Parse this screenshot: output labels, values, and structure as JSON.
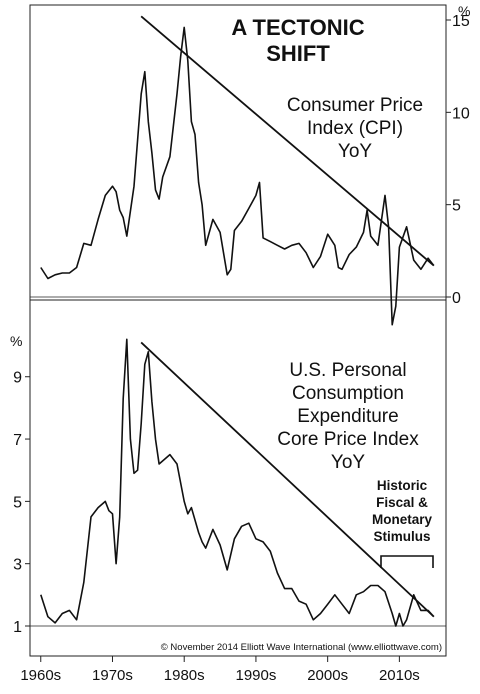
{
  "chart_data": [
    {
      "type": "line",
      "title": "A TECTONIC\nSHIFT",
      "series": [
        {
          "name": "Consumer Price\nIndex (CPI)\nYoY",
          "x": [
            1960.0,
            1961.0,
            1962.0,
            1963.0,
            1964.0,
            1965.0,
            1966.0,
            1967.0,
            1968.0,
            1969.0,
            1970.0,
            1970.5,
            1971.0,
            1971.5,
            1972.0,
            1973.0,
            1973.5,
            1974.0,
            1974.5,
            1975.0,
            1975.5,
            1976.0,
            1976.5,
            1977.0,
            1978.0,
            1979.0,
            1979.5,
            1980.0,
            1980.5,
            1981.0,
            1981.5,
            1982.0,
            1982.5,
            1983.0,
            1984.0,
            1985.0,
            1986.0,
            1986.5,
            1987.0,
            1988.0,
            1989.0,
            1990.0,
            1990.5,
            1991.0,
            1992.0,
            1993.0,
            1994.0,
            1995.0,
            1996.0,
            1997.0,
            1998.0,
            1999.0,
            2000.0,
            2001.0,
            2001.5,
            2002.0,
            2003.0,
            2004.0,
            2005.0,
            2005.5,
            2006.0,
            2007.0,
            2008.0,
            2008.5,
            2009.0,
            2009.5,
            2010.0,
            2011.0,
            2012.0,
            2013.0,
            2014.0,
            2014.8
          ],
          "values": [
            1.6,
            1.0,
            1.2,
            1.3,
            1.3,
            1.6,
            2.9,
            2.8,
            4.2,
            5.5,
            6.0,
            5.7,
            4.7,
            4.3,
            3.3,
            6.0,
            8.5,
            11.0,
            12.2,
            9.5,
            7.8,
            5.8,
            5.3,
            6.5,
            7.6,
            11.0,
            13.0,
            14.6,
            12.8,
            9.5,
            8.8,
            6.2,
            5.0,
            2.8,
            4.2,
            3.5,
            1.2,
            1.5,
            3.6,
            4.1,
            4.8,
            5.5,
            6.2,
            3.2,
            3.0,
            2.8,
            2.6,
            2.8,
            2.9,
            2.4,
            1.6,
            2.2,
            3.4,
            2.8,
            1.6,
            1.5,
            2.3,
            2.7,
            3.5,
            4.7,
            3.3,
            2.8,
            5.5,
            3.8,
            -1.5,
            -0.5,
            2.7,
            3.8,
            2.0,
            1.5,
            2.1,
            1.7
          ]
        }
      ],
      "ylim": [
        0,
        15
      ],
      "yticks": [
        0,
        5,
        10,
        15
      ],
      "ylabel": "%",
      "trendline": {
        "x": [
          1974.0,
          2014.8
        ],
        "y": [
          15.2,
          1.7
        ]
      },
      "grid": false
    },
    {
      "type": "line",
      "series": [
        {
          "name": "U.S. Personal\nConsumption\nExpenditure\nCore Price Index\nYoY",
          "x": [
            1960.0,
            1961.0,
            1962.0,
            1963.0,
            1964.0,
            1965.0,
            1966.0,
            1967.0,
            1968.0,
            1969.0,
            1969.5,
            1970.0,
            1970.5,
            1971.0,
            1971.5,
            1972.0,
            1972.5,
            1973.0,
            1973.5,
            1974.0,
            1974.5,
            1975.0,
            1975.5,
            1976.0,
            1976.5,
            1977.0,
            1978.0,
            1979.0,
            1980.0,
            1980.5,
            1981.0,
            1982.0,
            1982.5,
            1983.0,
            1984.0,
            1985.0,
            1986.0,
            1987.0,
            1988.0,
            1989.0,
            1990.0,
            1991.0,
            1992.0,
            1993.0,
            1994.0,
            1995.0,
            1996.0,
            1997.0,
            1998.0,
            1999.0,
            2000.0,
            2001.0,
            2002.0,
            2003.0,
            2004.0,
            2005.0,
            2006.0,
            2007.0,
            2008.0,
            2009.0,
            2009.5,
            2010.0,
            2010.5,
            2011.0,
            2012.0,
            2013.0,
            2014.0,
            2014.8
          ],
          "values": [
            2.0,
            1.3,
            1.1,
            1.4,
            1.5,
            1.2,
            2.4,
            4.5,
            4.8,
            5.0,
            4.7,
            4.6,
            3.0,
            4.5,
            8.3,
            10.2,
            7.0,
            5.9,
            6.0,
            7.5,
            9.4,
            9.8,
            8.2,
            7.0,
            6.2,
            6.3,
            6.5,
            6.2,
            5.0,
            4.6,
            4.8,
            4.0,
            3.7,
            3.5,
            4.1,
            3.6,
            2.8,
            3.8,
            4.2,
            4.3,
            3.8,
            3.7,
            3.4,
            2.7,
            2.2,
            2.2,
            1.8,
            1.7,
            1.2,
            1.4,
            1.7,
            2.0,
            1.7,
            1.4,
            2.0,
            2.1,
            2.3,
            2.3,
            2.1,
            1.4,
            1.0,
            1.4,
            1.0,
            1.2,
            2.0,
            1.5,
            1.5,
            1.3
          ]
        }
      ],
      "ylim": [
        1,
        10.5
      ],
      "yticks": [
        1,
        3,
        5,
        7,
        9
      ],
      "ylabel": "%",
      "trendline": {
        "x": [
          1974.0,
          2014.8
        ],
        "y": [
          10.1,
          1.3
        ]
      },
      "annotations": [
        "Historic\nFiscal &\nMonetary\nStimulus"
      ],
      "grid": false
    }
  ],
  "x_axis": {
    "tick_labels": [
      "1960s",
      "1970s",
      "1980s",
      "1990s",
      "2000s",
      "2010s"
    ],
    "tick_years": [
      1960,
      1970,
      1980,
      1990,
      2000,
      2010
    ]
  },
  "source": "© November 2014 Elliott Wave International (www.elliottwave.com)"
}
